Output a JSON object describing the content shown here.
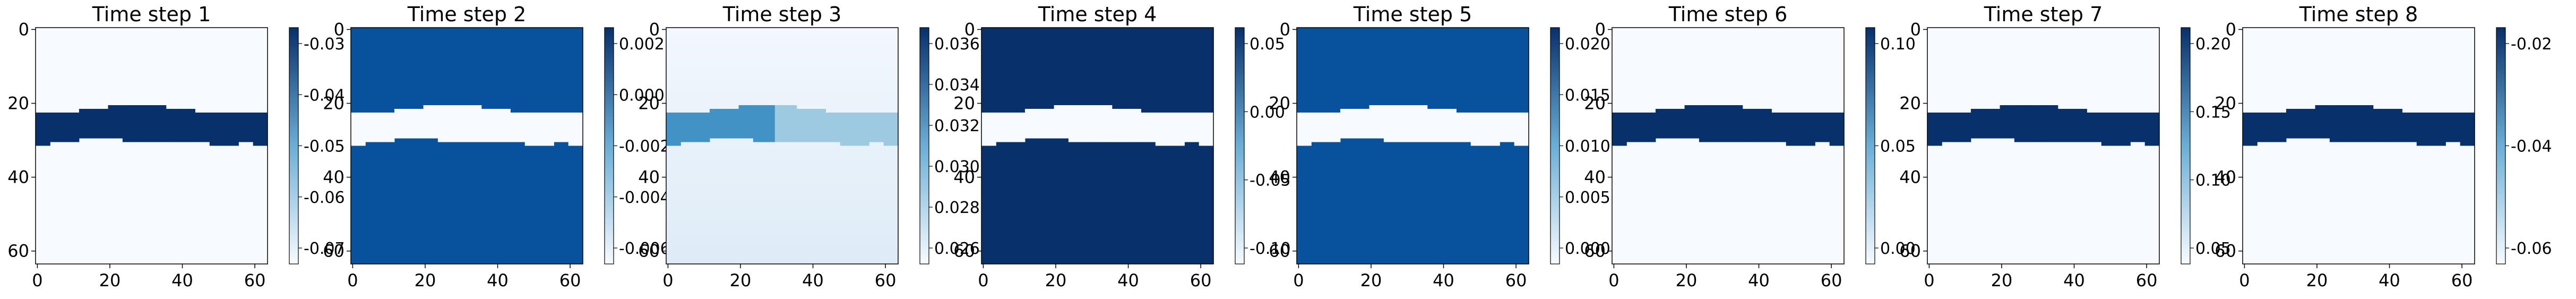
{
  "chart_data": [
    {
      "type": "heatmap",
      "title": "Time step 1",
      "xticks": [
        "0",
        "20",
        "40",
        "60"
      ],
      "yticks": [
        "0",
        "20",
        "40",
        "60"
      ],
      "xlim": [
        0,
        64
      ],
      "ylim": [
        64,
        0
      ],
      "pattern": "band_dark",
      "colorbar_ticks": [
        "-0.03",
        "-0.04",
        "-0.05",
        "-0.06",
        "-0.07"
      ],
      "colormap": "Blues"
    },
    {
      "type": "heatmap",
      "title": "Time step 2",
      "xticks": [
        "0",
        "20",
        "40",
        "60"
      ],
      "yticks": [
        "0",
        "20",
        "40",
        "60"
      ],
      "xlim": [
        0,
        64
      ],
      "ylim": [
        64,
        0
      ],
      "pattern": "band_light_on_blue",
      "colorbar_ticks": [
        "0.002",
        "0.000",
        "-0.002",
        "-0.004",
        "-0.006"
      ],
      "colormap": "Blues"
    },
    {
      "type": "heatmap",
      "title": "Time step 3",
      "xticks": [
        "0",
        "20",
        "40",
        "60"
      ],
      "yticks": [
        "0",
        "20",
        "40",
        "60"
      ],
      "xlim": [
        0,
        64
      ],
      "ylim": [
        64,
        0
      ],
      "pattern": "light_gradient",
      "colorbar_ticks": [
        "0.036",
        "0.034",
        "0.032",
        "0.030",
        "0.028",
        "0.026"
      ],
      "colormap": "Blues"
    },
    {
      "type": "heatmap",
      "title": "Time step 4",
      "xticks": [
        "0",
        "20",
        "40",
        "60"
      ],
      "yticks": [
        "0",
        "20",
        "40",
        "60"
      ],
      "xlim": [
        0,
        64
      ],
      "ylim": [
        64,
        0
      ],
      "pattern": "band_light_on_dark",
      "colorbar_ticks": [
        "0.05",
        "0.00",
        "-0.05",
        "-0.10"
      ],
      "colormap": "Blues"
    },
    {
      "type": "heatmap",
      "title": "Time step 5",
      "xticks": [
        "0",
        "20",
        "40",
        "60"
      ],
      "yticks": [
        "0",
        "20",
        "40",
        "60"
      ],
      "xlim": [
        0,
        64
      ],
      "ylim": [
        64,
        0
      ],
      "pattern": "band_light_on_blue",
      "colorbar_ticks": [
        "0.020",
        "0.015",
        "0.010",
        "0.005",
        "0.000"
      ],
      "colormap": "Blues"
    },
    {
      "type": "heatmap",
      "title": "Time step 6",
      "xticks": [
        "0",
        "20",
        "40",
        "60"
      ],
      "yticks": [
        "0",
        "20",
        "40",
        "60"
      ],
      "xlim": [
        0,
        64
      ],
      "ylim": [
        64,
        0
      ],
      "pattern": "band_dark",
      "colorbar_ticks": [
        "0.10",
        "0.05",
        "0.00"
      ],
      "colormap": "Blues"
    },
    {
      "type": "heatmap",
      "title": "Time step 7",
      "xticks": [
        "0",
        "20",
        "40",
        "60"
      ],
      "yticks": [
        "0",
        "20",
        "40",
        "60"
      ],
      "xlim": [
        0,
        64
      ],
      "ylim": [
        64,
        0
      ],
      "pattern": "band_dark",
      "colorbar_ticks": [
        "0.20",
        "0.15",
        "0.10",
        "0.05"
      ],
      "colormap": "Blues"
    },
    {
      "type": "heatmap",
      "title": "Time step 8",
      "xticks": [
        "0",
        "20",
        "40",
        "60"
      ],
      "yticks": [
        "0",
        "20",
        "40",
        "60"
      ],
      "xlim": [
        0,
        64
      ],
      "ylim": [
        64,
        0
      ],
      "pattern": "band_dark",
      "colorbar_ticks": [
        "-0.02",
        "-0.04",
        "-0.06"
      ],
      "colormap": "Blues"
    }
  ],
  "colors": {
    "darkest": "#08306b",
    "dark": "#08519c",
    "mid": "#2171b5",
    "light": "#c6dbef",
    "lightest": "#f7fbff"
  }
}
